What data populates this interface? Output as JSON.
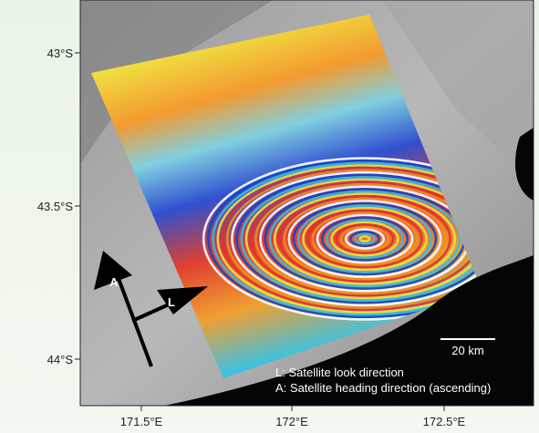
{
  "map": {
    "lat_labels": [
      "43°S",
      "43.5°S",
      "44°S"
    ],
    "lon_labels": [
      "171.5°E",
      "172°E",
      "172.5°E"
    ],
    "scale_bar": "20 km",
    "arrows": {
      "heading": "A",
      "look": "L"
    },
    "legend": [
      "L: Satellite look direction",
      "A: Satellite heading direction (ascending)"
    ]
  }
}
